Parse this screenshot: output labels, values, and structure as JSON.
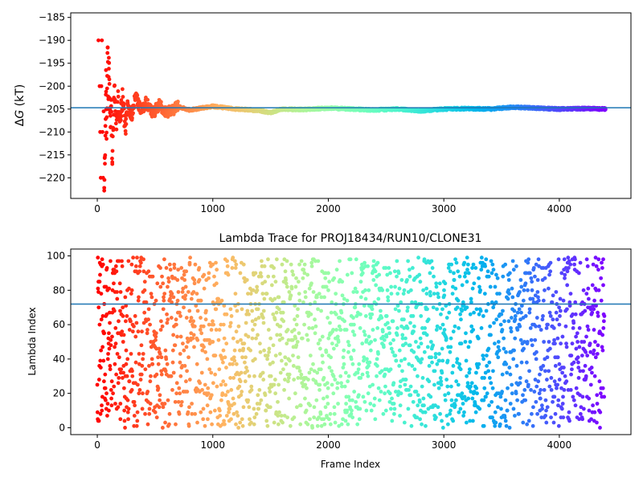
{
  "chart_data": [
    {
      "type": "scatter",
      "title": "",
      "xlabel": "",
      "ylabel": "ΔG (kT)",
      "ylabel_parts": {
        "delta": "Δ",
        "var": "G",
        "unit": " (kT)"
      },
      "xlim": [
        -230,
        4620
      ],
      "ylim": [
        -224.5,
        -184
      ],
      "xticks": [
        0,
        1000,
        2000,
        3000,
        4000
      ],
      "yticks": [
        -220,
        -215,
        -210,
        -205,
        -200,
        -195,
        -190,
        -185
      ],
      "hline": -204.7,
      "hline_color": "#1f77b4",
      "colormap": "rainbow",
      "color_direction": "red at frame 0 to violet at final frame",
      "n_frames": 4400,
      "points": [
        [
          10,
          -190.0
        ],
        [
          20,
          -200.0
        ],
        [
          25,
          -210.0
        ],
        [
          30,
          -220.0
        ],
        [
          35,
          -200.0
        ],
        [
          40,
          -190.0
        ],
        [
          45,
          -210.0
        ],
        [
          50,
          -220.0
        ],
        [
          55,
          -205.5
        ],
        [
          60,
          -222.2
        ],
        [
          65,
          -215.5
        ],
        [
          70,
          -210.8
        ],
        [
          75,
          -196.5
        ],
        [
          80,
          -211.5
        ],
        [
          85,
          -200.5
        ],
        [
          90,
          -191.6
        ],
        [
          95,
          -205.0
        ],
        [
          100,
          -193.8
        ],
        [
          105,
          -199.5
        ],
        [
          110,
          -205.8
        ],
        [
          115,
          -209.0
        ],
        [
          120,
          -203.0
        ],
        [
          130,
          -217.0
        ],
        [
          140,
          -207.5
        ],
        [
          150,
          -201.0
        ],
        [
          165,
          -208.0
        ],
        [
          180,
          -203.5
        ],
        [
          200,
          -207.0
        ],
        [
          220,
          -202.5
        ],
        [
          240,
          -210.5
        ],
        [
          260,
          -204.0
        ],
        [
          300,
          -206.5
        ],
        [
          330,
          -202.0
        ],
        [
          380,
          -205.5
        ],
        [
          420,
          -203.5
        ],
        [
          480,
          -206.0
        ],
        [
          540,
          -204.0
        ],
        [
          600,
          -205.8
        ],
        [
          700,
          -204.5
        ],
        [
          800,
          -205.2
        ],
        [
          900,
          -204.8
        ],
        [
          1000,
          -204.4
        ],
        [
          1200,
          -205.0
        ],
        [
          1400,
          -205.3
        ],
        [
          1500,
          -205.8
        ],
        [
          1600,
          -205.0
        ],
        [
          1800,
          -205.1
        ],
        [
          2000,
          -204.8
        ],
        [
          2200,
          -205.0
        ],
        [
          2400,
          -205.2
        ],
        [
          2600,
          -205.0
        ],
        [
          2800,
          -205.4
        ],
        [
          3000,
          -205.0
        ],
        [
          3200,
          -204.9
        ],
        [
          3400,
          -205.0
        ],
        [
          3600,
          -204.6
        ],
        [
          3800,
          -204.8
        ],
        [
          4000,
          -205.0
        ],
        [
          4200,
          -204.9
        ],
        [
          4400,
          -205.0
        ]
      ]
    },
    {
      "type": "scatter",
      "title": "Lambda Trace for PROJ18434/RUN10/CLONE31",
      "xlabel": "Frame Index",
      "ylabel": "Lambda Index",
      "xlim": [
        -230,
        4620
      ],
      "ylim": [
        -4,
        104
      ],
      "xticks": [
        0,
        1000,
        2000,
        3000,
        4000
      ],
      "yticks": [
        0,
        20,
        40,
        60,
        80,
        100
      ],
      "hline": 72,
      "hline_color": "#1f77b4",
      "colormap": "rainbow",
      "color_direction": "red at frame 0 to violet at final frame",
      "n_frames": 4400,
      "lambda_range": [
        0,
        99
      ],
      "points": [
        [
          5,
          99
        ],
        [
          10,
          85
        ],
        [
          20,
          60
        ],
        [
          30,
          35
        ],
        [
          40,
          10
        ],
        [
          60,
          72
        ],
        [
          80,
          20
        ],
        [
          100,
          55
        ],
        [
          150,
          90
        ],
        [
          200,
          5
        ],
        [
          250,
          45
        ],
        [
          300,
          80
        ],
        [
          500,
          30
        ],
        [
          800,
          95
        ],
        [
          1000,
          50
        ],
        [
          1200,
          2
        ],
        [
          1500,
          75
        ],
        [
          1800,
          25
        ],
        [
          2000,
          90
        ],
        [
          2200,
          40
        ],
        [
          2500,
          65
        ],
        [
          2800,
          10
        ],
        [
          3000,
          55
        ],
        [
          3200,
          85
        ],
        [
          3500,
          20
        ],
        [
          3800,
          95
        ],
        [
          4000,
          60
        ],
        [
          4200,
          5
        ],
        [
          4300,
          45
        ],
        [
          4380,
          98
        ]
      ]
    }
  ]
}
